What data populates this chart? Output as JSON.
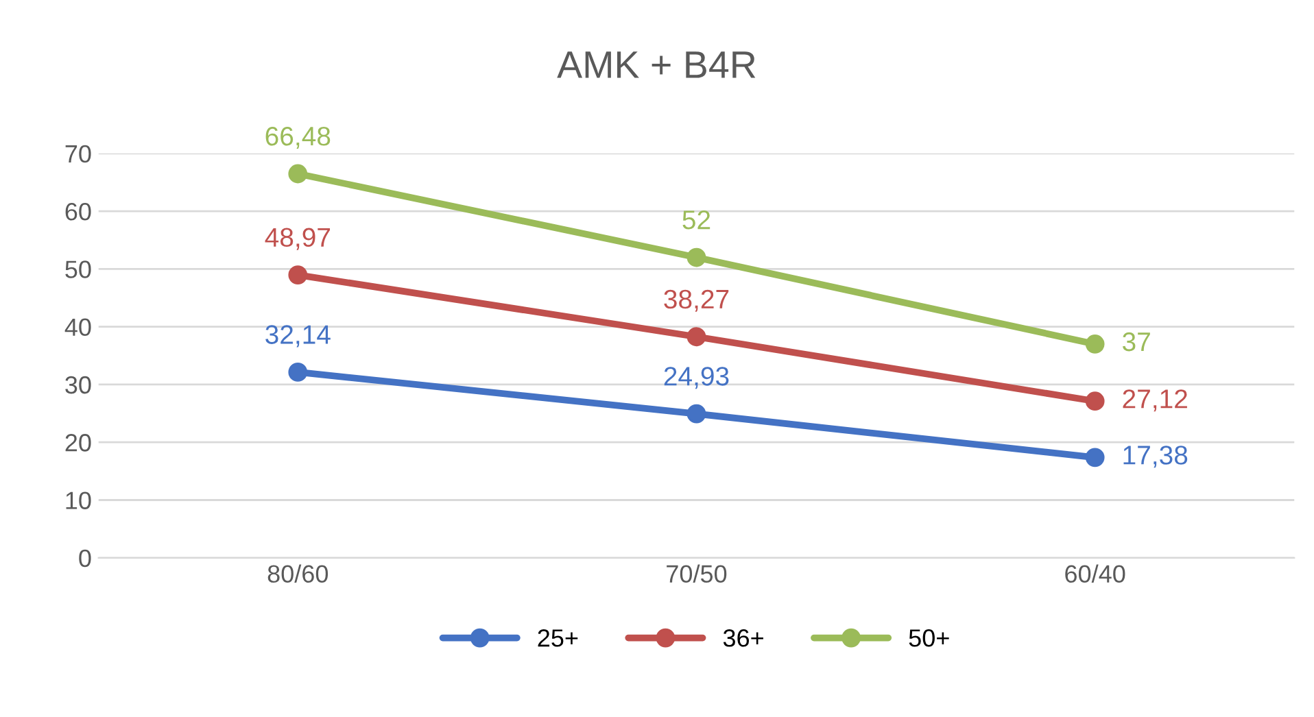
{
  "chart_data": {
    "type": "line",
    "title": "AMK + B4R",
    "categories": [
      "80/60",
      "70/50",
      "60/40"
    ],
    "series": [
      {
        "name": "25+",
        "color": "#4472c4",
        "values": [
          32.14,
          24.93,
          17.38
        ],
        "value_labels": [
          "32,14",
          "24,93",
          "17,38"
        ]
      },
      {
        "name": "36+",
        "color": "#c0504d",
        "values": [
          48.97,
          38.27,
          27.12
        ],
        "value_labels": [
          "48,97",
          "38,27",
          "27,12"
        ]
      },
      {
        "name": "50+",
        "color": "#9bbb59",
        "values": [
          66.48,
          52,
          37
        ],
        "value_labels": [
          "66,48",
          "52",
          "37"
        ]
      }
    ],
    "ylim": [
      0,
      70
    ],
    "yticks": [
      0,
      10,
      20,
      30,
      40,
      50,
      60,
      70
    ],
    "grid": "y",
    "legend": "bottom",
    "marker": "circle",
    "line_style": "solid"
  }
}
